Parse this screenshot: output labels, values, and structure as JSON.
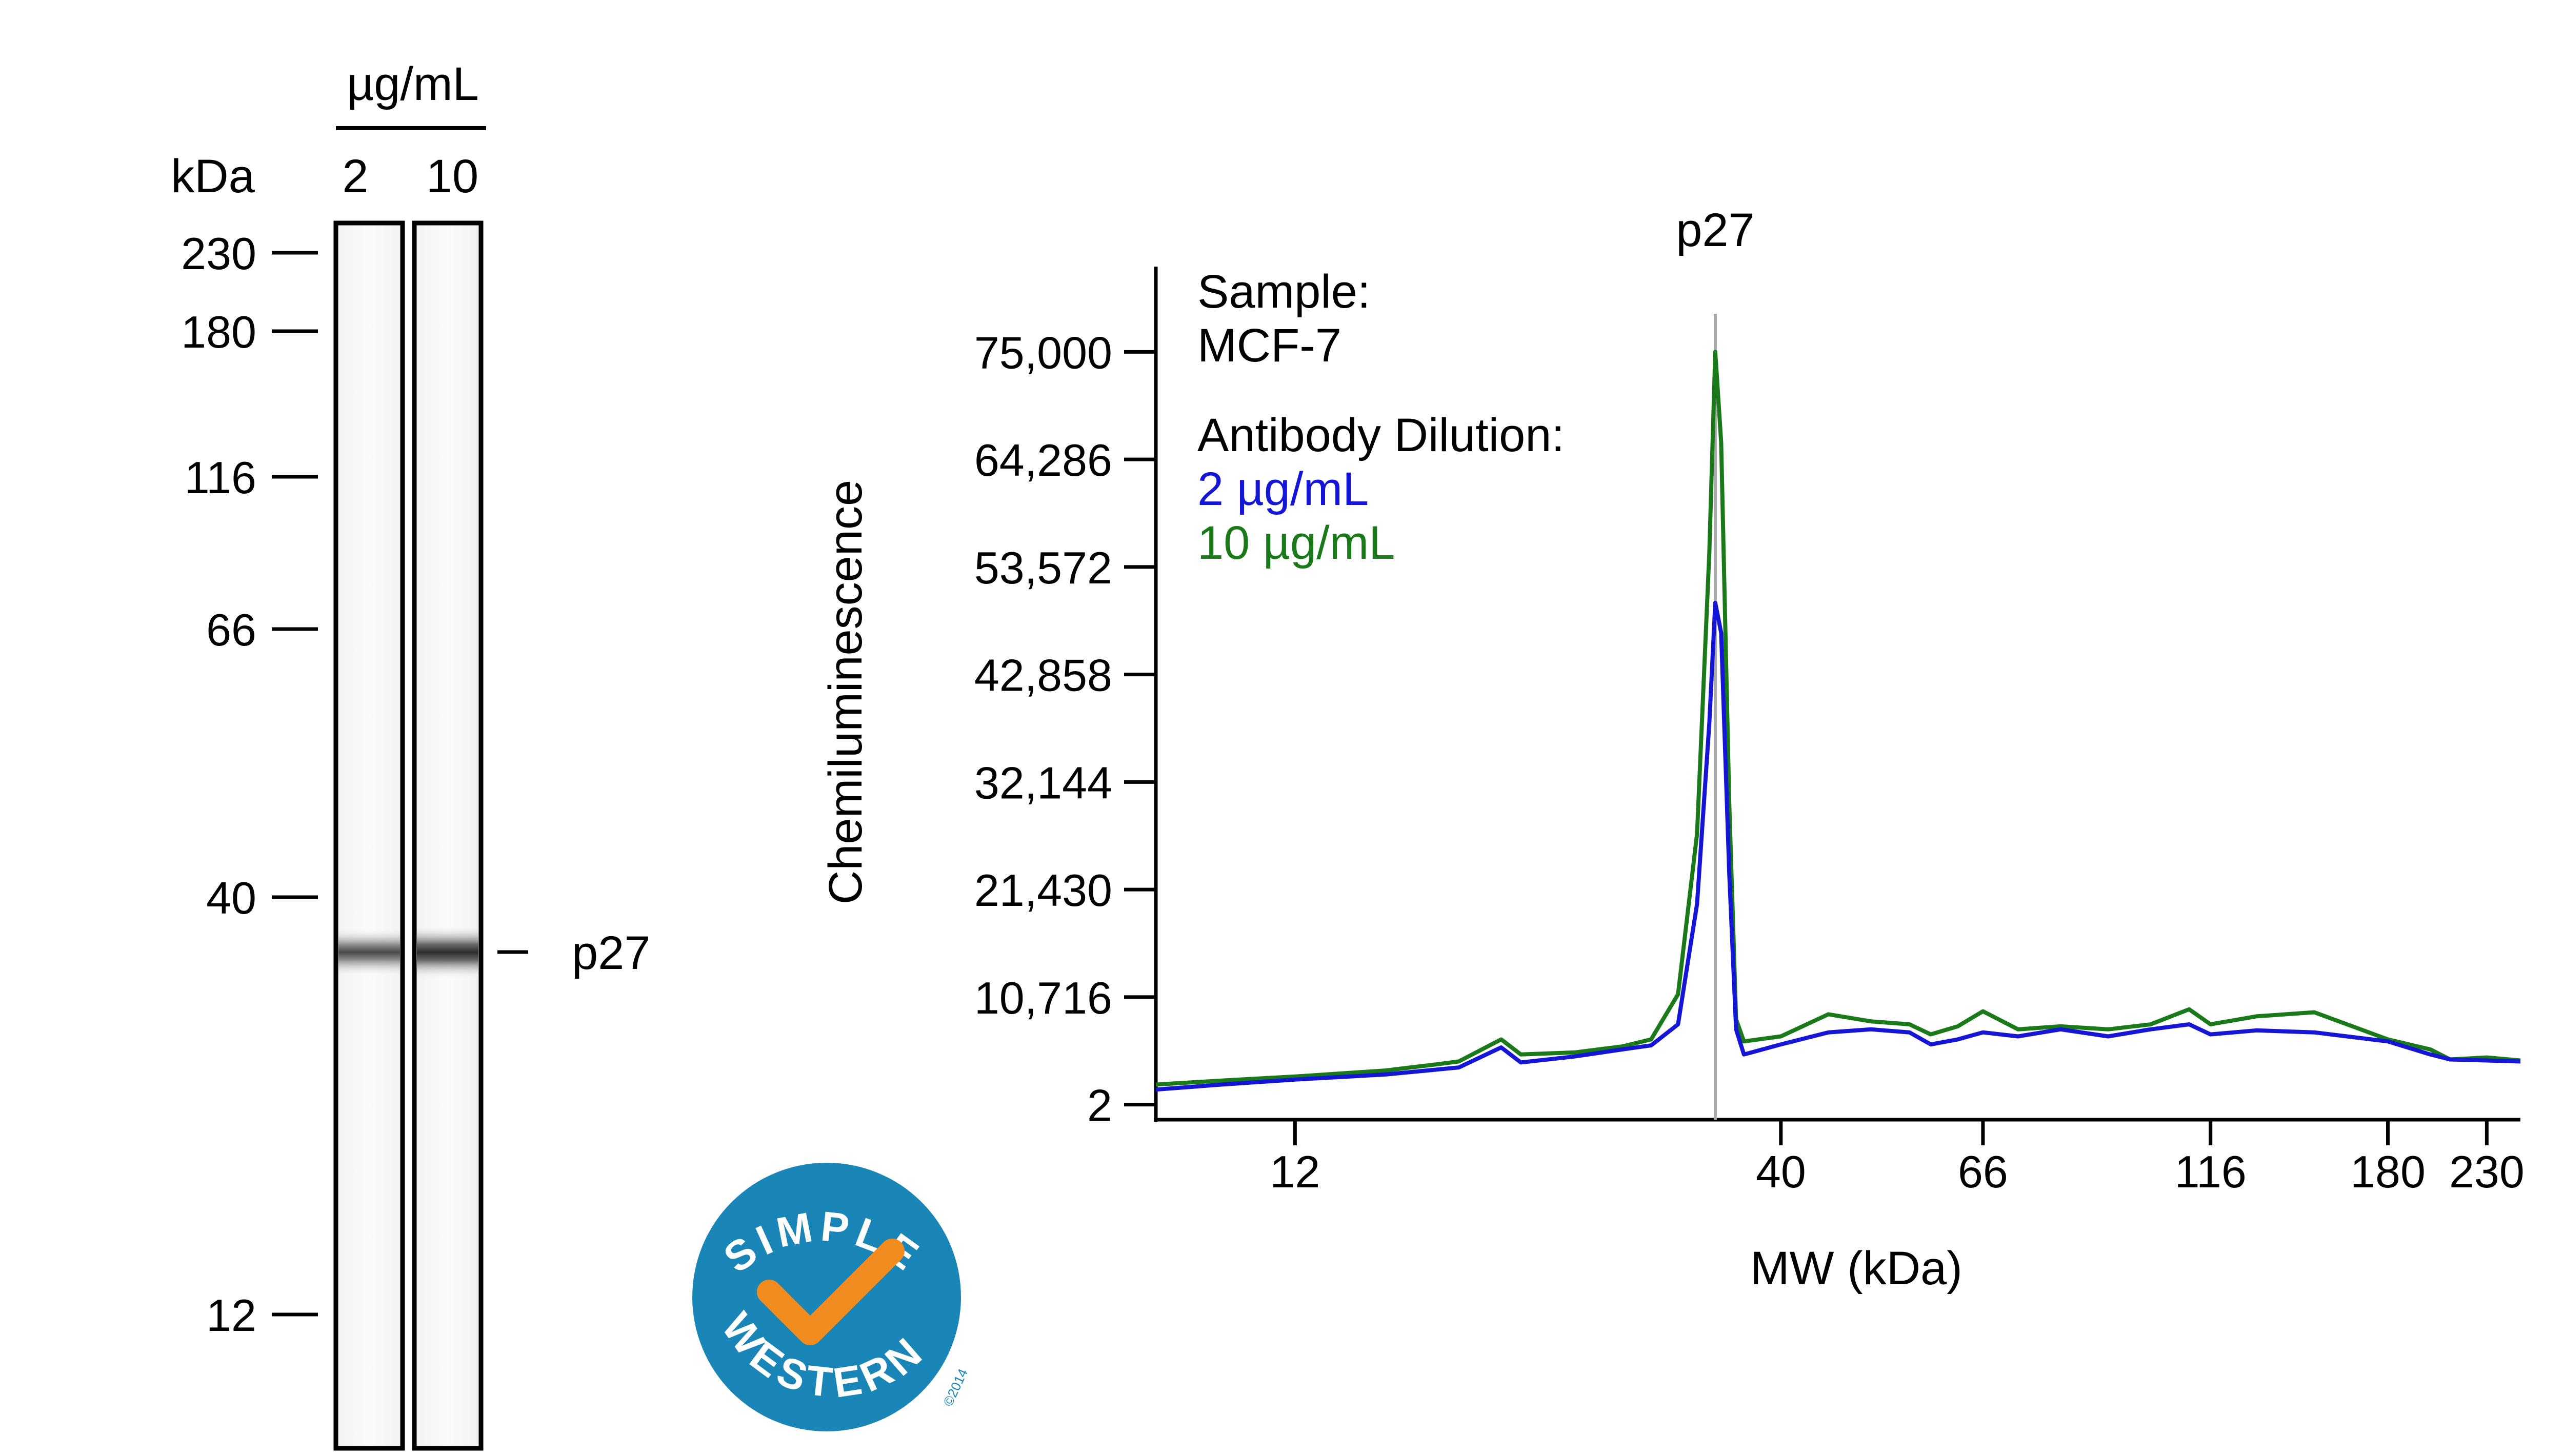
{
  "gel": {
    "concentration_label": "µg/mL",
    "kda_label": "kDa",
    "lane_labels": [
      "2",
      "10"
    ],
    "markers": [
      "230",
      "180",
      "116",
      "66",
      "40",
      "12"
    ],
    "band_label": "p27"
  },
  "logo": {
    "text_top": "SIMPLE",
    "text_bottom": "WESTERN",
    "copyright": "©2014",
    "color": "#1a86b8",
    "check_color": "#f28c1e"
  },
  "chart_data": {
    "type": "line",
    "title": "",
    "xlabel": "MW (kDa)",
    "ylabel": "Chemiluminescence",
    "x_scale": "log",
    "x_ticks": [
      12,
      40,
      66,
      116,
      180,
      230
    ],
    "xlim": [
      8.5,
      250
    ],
    "y_ticks": [
      2,
      10716,
      21430,
      32144,
      42858,
      53572,
      64286,
      75000
    ],
    "y_tick_labels": [
      "2",
      "10,716",
      "21,430",
      "32,144",
      "42,858",
      "53,572",
      "64,286",
      "75,000"
    ],
    "ylim": [
      -1500,
      83500
    ],
    "peak_annotation": {
      "label": "p27",
      "x": 34
    },
    "legend": {
      "sample_label": "Sample:",
      "sample_value": "MCF-7",
      "dilution_label": "Antibody Dilution:"
    },
    "series": [
      {
        "name": "2 µg/mL",
        "color": "#1515d6",
        "points": [
          [
            8.5,
            1500
          ],
          [
            10,
            2000
          ],
          [
            12,
            2500
          ],
          [
            15,
            3000
          ],
          [
            18,
            3700
          ],
          [
            20,
            5700
          ],
          [
            21,
            4200
          ],
          [
            24,
            4800
          ],
          [
            27,
            5500
          ],
          [
            29,
            5900
          ],
          [
            31,
            8000
          ],
          [
            32.5,
            20000
          ],
          [
            33.5,
            38000
          ],
          [
            34,
            50000
          ],
          [
            34.5,
            47000
          ],
          [
            35.2,
            23000
          ],
          [
            35.8,
            7500
          ],
          [
            36.5,
            5000
          ],
          [
            40,
            6000
          ],
          [
            45,
            7200
          ],
          [
            50,
            7500
          ],
          [
            55,
            7200
          ],
          [
            58,
            6000
          ],
          [
            62,
            6500
          ],
          [
            66,
            7200
          ],
          [
            72,
            6800
          ],
          [
            80,
            7500
          ],
          [
            90,
            6800
          ],
          [
            100,
            7500
          ],
          [
            110,
            8000
          ],
          [
            116,
            7000
          ],
          [
            130,
            7400
          ],
          [
            150,
            7200
          ],
          [
            180,
            6300
          ],
          [
            200,
            5000
          ],
          [
            210,
            4500
          ],
          [
            230,
            4400
          ],
          [
            250,
            4300
          ]
        ]
      },
      {
        "name": "10 µg/mL",
        "color": "#1a7a1a",
        "points": [
          [
            8.5,
            2000
          ],
          [
            10,
            2400
          ],
          [
            12,
            2800
          ],
          [
            15,
            3400
          ],
          [
            17,
            4000
          ],
          [
            18,
            4300
          ],
          [
            20,
            6500
          ],
          [
            21,
            5000
          ],
          [
            24,
            5200
          ],
          [
            27,
            5800
          ],
          [
            29,
            6500
          ],
          [
            31,
            11000
          ],
          [
            32.5,
            27000
          ],
          [
            33.5,
            55000
          ],
          [
            34,
            75000
          ],
          [
            34.5,
            66000
          ],
          [
            35.2,
            30000
          ],
          [
            35.8,
            8500
          ],
          [
            36.5,
            6300
          ],
          [
            40,
            6800
          ],
          [
            45,
            9000
          ],
          [
            50,
            8300
          ],
          [
            55,
            8000
          ],
          [
            58,
            7000
          ],
          [
            62,
            7800
          ],
          [
            66,
            9300
          ],
          [
            72,
            7500
          ],
          [
            80,
            7800
          ],
          [
            90,
            7500
          ],
          [
            100,
            8000
          ],
          [
            110,
            9500
          ],
          [
            116,
            8000
          ],
          [
            130,
            8800
          ],
          [
            150,
            9200
          ],
          [
            180,
            6500
          ],
          [
            200,
            5500
          ],
          [
            210,
            4500
          ],
          [
            230,
            4700
          ],
          [
            250,
            4400
          ]
        ]
      }
    ]
  }
}
